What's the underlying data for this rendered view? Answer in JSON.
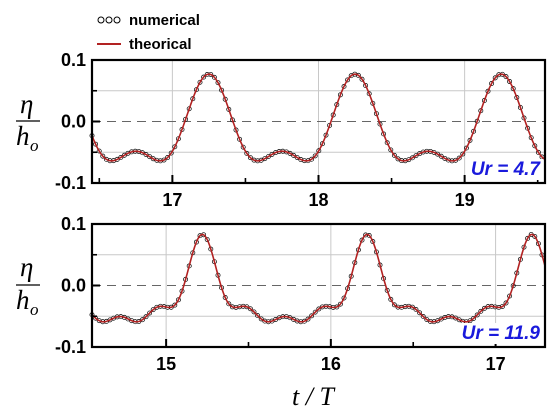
{
  "legend": {
    "entries": [
      {
        "label": "numerical",
        "marker": "circle",
        "color": "#000000"
      },
      {
        "label": "theorical",
        "marker": "line",
        "color": "#b22222"
      }
    ]
  },
  "y_label": {
    "eta": "η",
    "h": "h",
    "sub": "o"
  },
  "x_label": "t / T",
  "colors": {
    "numerical": "#000000",
    "theorical": "#b22222",
    "annotation": "#1a1adc",
    "grid": "#c8c8c8",
    "zero_line": "#666666"
  },
  "chart_data": [
    {
      "type": "line",
      "annotation": "Ur = 4.7",
      "xlim": [
        16.45,
        19.55
      ],
      "ylim": [
        -0.1,
        0.1
      ],
      "xticks": [
        17,
        18,
        19
      ],
      "xtick_labels": [
        "17",
        "18",
        "19"
      ],
      "yticks": [
        -0.1,
        0.0,
        0.1
      ],
      "ytick_labels": [
        "-0.1",
        "0.0",
        "0.1"
      ],
      "grid": true,
      "zero_line": "dashed",
      "series": [
        {
          "name": "numerical",
          "style": "circles",
          "x_range": [
            16.45,
            19.55
          ],
          "wave": {
            "period": 1.0,
            "crest_t": 17.25,
            "crest": 0.077,
            "trough": -0.064,
            "harmonics": 2
          }
        },
        {
          "name": "theorical",
          "style": "line",
          "x_range": [
            16.45,
            19.55
          ],
          "wave": {
            "period": 1.0,
            "crest_t": 17.25,
            "crest": 0.077,
            "trough": -0.064,
            "harmonics": 2
          }
        }
      ]
    },
    {
      "type": "line",
      "annotation": "Ur = 11.9",
      "xlim": [
        14.55,
        17.3
      ],
      "ylim": [
        -0.1,
        0.1
      ],
      "xticks": [
        15,
        16,
        17
      ],
      "xtick_labels": [
        "15",
        "16",
        "17"
      ],
      "yticks": [
        -0.1,
        0.0,
        0.1
      ],
      "ytick_labels": [
        "-0.1",
        "0.0",
        "0.1"
      ],
      "grid": true,
      "zero_line": "dashed",
      "series": [
        {
          "name": "numerical",
          "style": "circles",
          "x_range": [
            14.55,
            17.3
          ],
          "wave": {
            "period": 1.0,
            "crest_t": 15.22,
            "crest": 0.083,
            "trough": -0.059,
            "harmonics": 4
          }
        },
        {
          "name": "theorical",
          "style": "line",
          "x_range": [
            14.55,
            17.3
          ],
          "wave": {
            "period": 1.0,
            "crest_t": 15.22,
            "crest": 0.083,
            "trough": -0.059,
            "harmonics": 4
          }
        }
      ]
    }
  ]
}
